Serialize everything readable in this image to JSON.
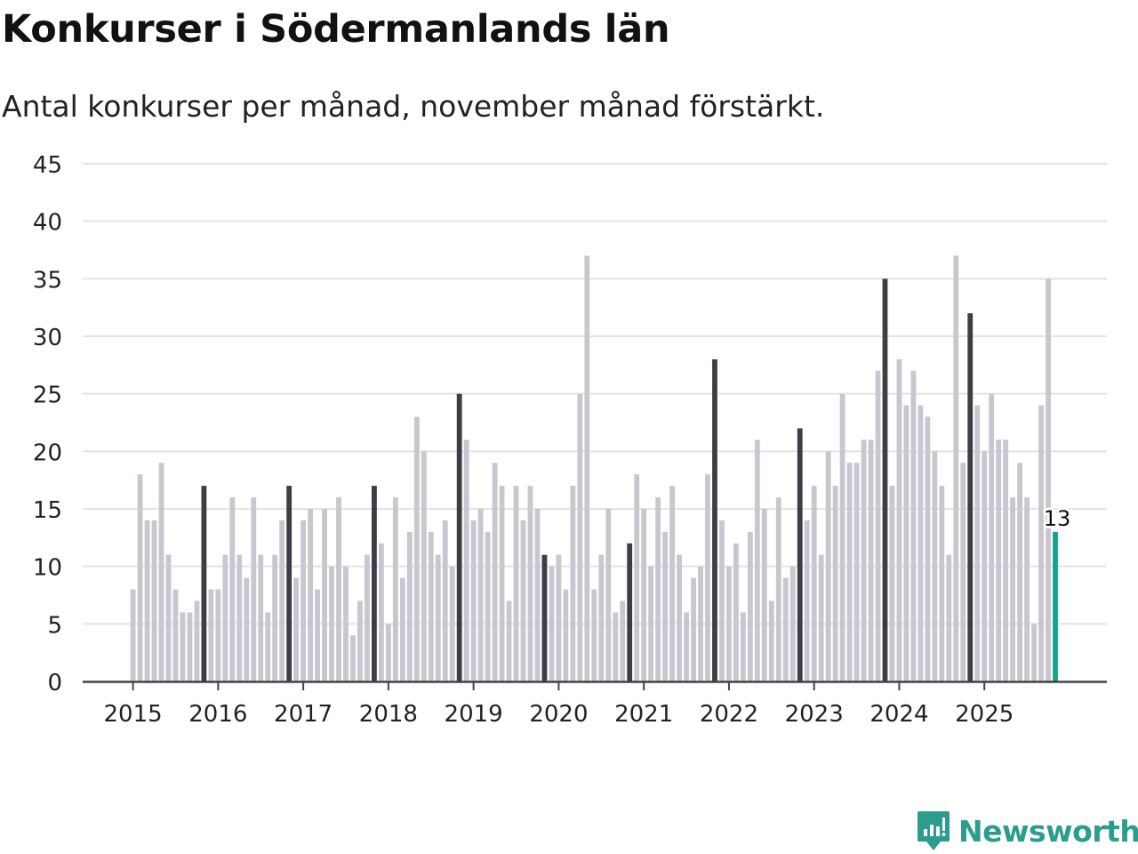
{
  "header": {
    "title": "Konkurser i Södermanlands län",
    "subtitle": "Antal konkurser per månad, november månad förstärkt."
  },
  "brand": {
    "name": "Newsworthy",
    "color": "#2a9d8f"
  },
  "colors": {
    "regular_bar": "#c8c7d0",
    "highlight_bar": "#3d3d45",
    "latest_bar": "#13a38f",
    "grid": "#e3e3e6",
    "axis": "#444444",
    "tick_text": "#222222"
  },
  "chart_data": {
    "type": "bar",
    "title": "Konkurser i Södermanlands län",
    "subtitle": "Antal konkurser per månad, november månad förstärkt.",
    "xlabel": "",
    "ylabel": "",
    "ylim": [
      0,
      45
    ],
    "yticks": [
      0,
      5,
      10,
      15,
      20,
      25,
      30,
      35,
      40,
      45
    ],
    "grid": true,
    "start_year": 2015,
    "start_month": 1,
    "xtick_labels": [
      "2015",
      "2016",
      "2017",
      "2018",
      "2019",
      "2020",
      "2021",
      "2022",
      "2023",
      "2024",
      "2025"
    ],
    "highlight_month": 11,
    "values": [
      8,
      18,
      14,
      14,
      19,
      11,
      8,
      6,
      6,
      7,
      17,
      8,
      8,
      11,
      16,
      11,
      9,
      16,
      11,
      6,
      11,
      14,
      17,
      9,
      14,
      15,
      8,
      15,
      10,
      16,
      10,
      4,
      7,
      11,
      17,
      12,
      5,
      16,
      9,
      13,
      23,
      20,
      13,
      11,
      14,
      10,
      25,
      21,
      14,
      15,
      13,
      19,
      17,
      7,
      17,
      14,
      17,
      15,
      11,
      10,
      11,
      8,
      17,
      25,
      37,
      8,
      11,
      15,
      6,
      7,
      12,
      18,
      15,
      10,
      16,
      13,
      17,
      11,
      6,
      9,
      10,
      18,
      28,
      14,
      10,
      12,
      6,
      13,
      21,
      15,
      7,
      16,
      9,
      10,
      22,
      14,
      17,
      11,
      20,
      17,
      25,
      19,
      19,
      21,
      21,
      27,
      35,
      17,
      28,
      24,
      27,
      24,
      23,
      20,
      17,
      11,
      37,
      19,
      32,
      24,
      20,
      25,
      21,
      21,
      16,
      19,
      16,
      5,
      24,
      35,
      13
    ],
    "annotation": {
      "text": "13",
      "target": "last"
    }
  }
}
